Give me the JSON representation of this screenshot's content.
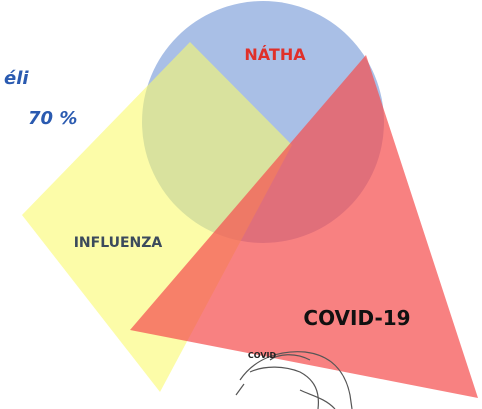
{
  "labels": {
    "circle": "NÁTHA",
    "diamond": "INFLUENZA",
    "triangle": "COVID-19",
    "sketch": "COVID"
  },
  "side_text": [
    "éli",
    "70 %"
  ]
}
